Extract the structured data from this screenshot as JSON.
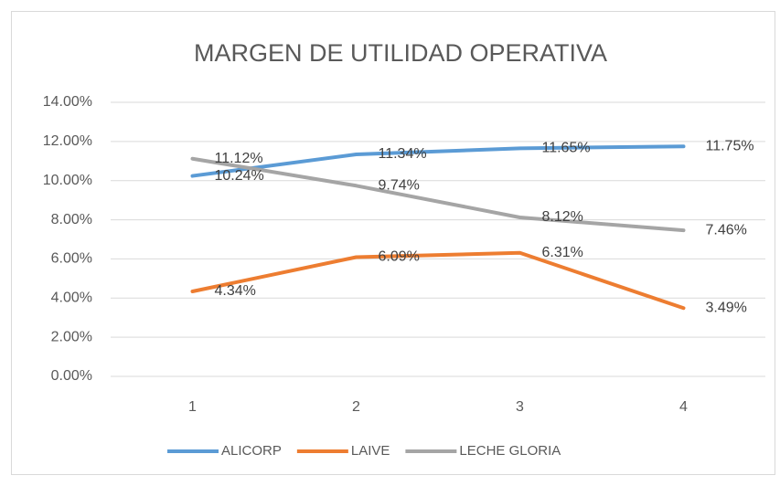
{
  "chart_data": {
    "type": "line",
    "title": "MARGEN DE UTILIDAD OPERATIVA",
    "categories": [
      1,
      2,
      3,
      4
    ],
    "series": [
      {
        "name": "ALICORP",
        "color": "#5b9bd5",
        "values": [
          10.24,
          11.34,
          11.65,
          11.75
        ],
        "value_labels": [
          "10.24%",
          "11.34%",
          "11.65%",
          "11.75%"
        ]
      },
      {
        "name": "LAIVE",
        "color": "#ed7d31",
        "values": [
          4.34,
          6.09,
          6.31,
          3.49
        ],
        "value_labels": [
          "4.34%",
          "6.09%",
          "6.31%",
          "3.49%"
        ]
      },
      {
        "name": "LECHE GLORIA",
        "color": "#a5a5a5",
        "values": [
          11.12,
          9.74,
          8.12,
          7.46
        ],
        "value_labels": [
          "11.12%",
          "9.74%",
          "8.12%",
          "7.46%"
        ]
      }
    ],
    "ylim": [
      0,
      14
    ],
    "yticks": [
      {
        "value": 0,
        "label": "0.00%"
      },
      {
        "value": 2,
        "label": "2.00%"
      },
      {
        "value": 4,
        "label": "4.00%"
      },
      {
        "value": 6,
        "label": "6.00%"
      },
      {
        "value": 8,
        "label": "8.00%"
      },
      {
        "value": 10,
        "label": "10.00%"
      },
      {
        "value": 12,
        "label": "12.00%"
      },
      {
        "value": 14,
        "label": "14.00%"
      }
    ],
    "grid": true,
    "legend": "bottom"
  }
}
